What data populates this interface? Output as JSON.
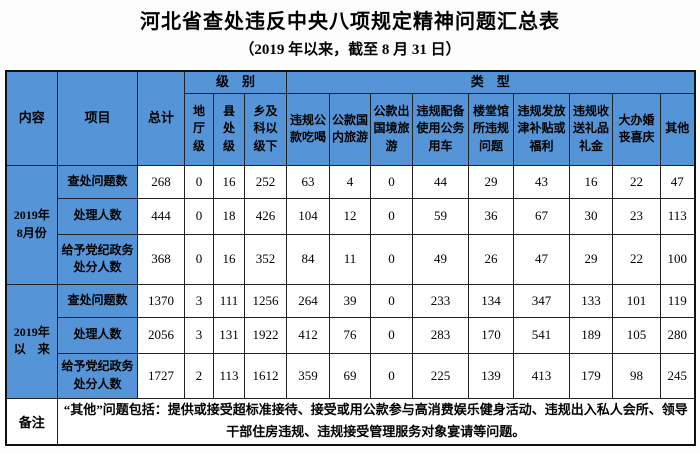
{
  "title": "河北省查处违反中央八项规定精神问题汇总表",
  "subtitle": "（2019 年以来，截至 8 月 31 日）",
  "table": {
    "header": {
      "content": "内容",
      "project": "项目",
      "total": "总计",
      "level_group": "级　别",
      "type_group": "类　型",
      "level_columns": [
        "地\n厅\n级",
        "县\n处\n级",
        "乡及\n科以\n级下"
      ],
      "type_columns": [
        "违规公\n款吃喝",
        "公款国\n内旅游",
        "公款出\n国境旅\n游",
        "违规配备\n使用公务\n用车",
        "楼堂馆\n所违规\n问题",
        "违规发放\n津补贴或\n福利",
        "违规收\n送礼品\n礼金",
        "大办婚\n丧喜庆",
        "其他"
      ]
    },
    "groups": [
      {
        "period": "2019年\n8月份",
        "rows": [
          {
            "label": "查处问题数",
            "cells": [
              "268",
              "0",
              "16",
              "252",
              "63",
              "4",
              "0",
              "44",
              "29",
              "43",
              "16",
              "22",
              "47"
            ]
          },
          {
            "label": "处理人数",
            "cells": [
              "444",
              "0",
              "18",
              "426",
              "104",
              "12",
              "0",
              "59",
              "36",
              "67",
              "30",
              "23",
              "113"
            ]
          },
          {
            "label": "给予党纪政务\n处分人数",
            "cells": [
              "368",
              "0",
              "16",
              "352",
              "84",
              "11",
              "0",
              "49",
              "26",
              "47",
              "29",
              "22",
              "100"
            ]
          }
        ]
      },
      {
        "period": "2019年\n以　来",
        "rows": [
          {
            "label": "查处问题数",
            "cells": [
              "1370",
              "3",
              "111",
              "1256",
              "264",
              "39",
              "0",
              "233",
              "134",
              "347",
              "133",
              "101",
              "119"
            ]
          },
          {
            "label": "处理人数",
            "cells": [
              "2056",
              "3",
              "131",
              "1922",
              "412",
              "76",
              "0",
              "283",
              "170",
              "541",
              "189",
              "105",
              "280"
            ]
          },
          {
            "label": "给予党纪政务\n处分人数",
            "cells": [
              "1727",
              "2",
              "113",
              "1612",
              "359",
              "69",
              "0",
              "225",
              "139",
              "413",
              "179",
              "98",
              "245"
            ]
          }
        ]
      }
    ],
    "remark": {
      "label": "备注",
      "text": "“其他”问题包括：提供或接受超标准接待、接受或用公款参与高消费娱乐健身活动、违规出入私人会所、领导干部住房违规、违规接受管理服务对象宴请等问题。"
    }
  },
  "colors": {
    "header_blue": "#5594d6",
    "border": "#1a1a1a",
    "cell_bg": "#ffffff",
    "text": "#000000"
  }
}
